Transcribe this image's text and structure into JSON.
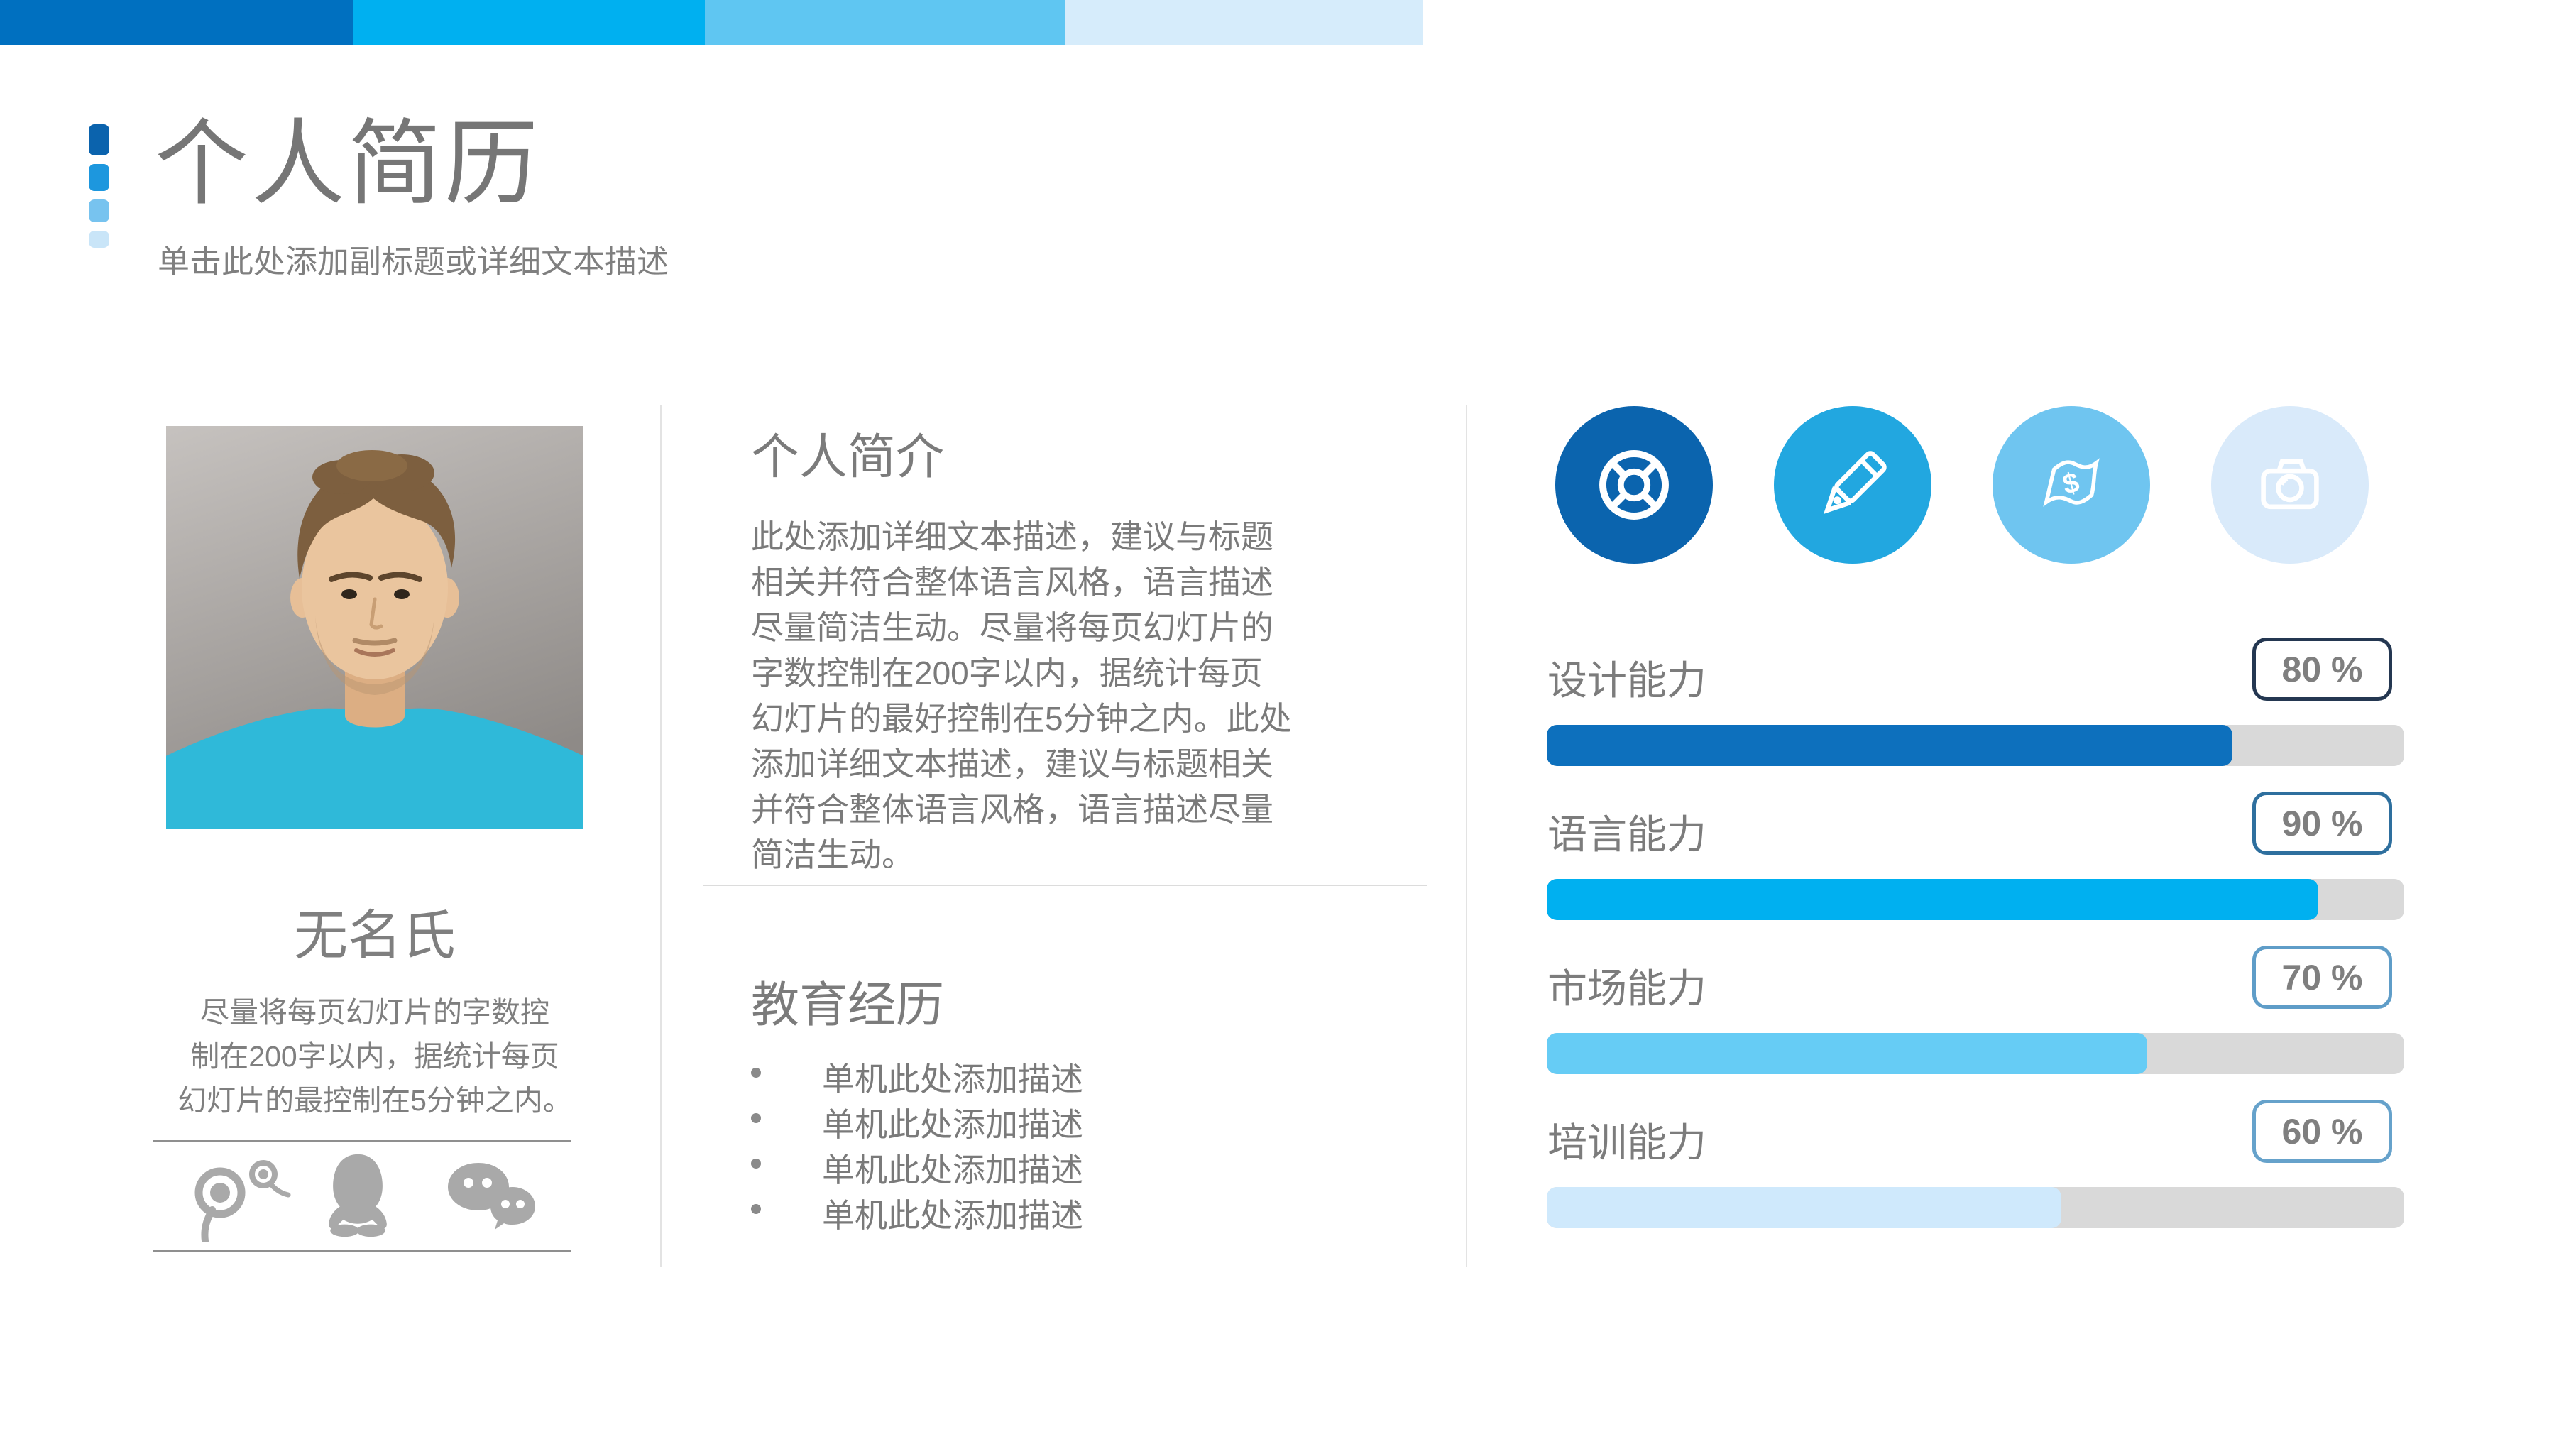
{
  "topbar": {
    "segments": [
      "#0070c0",
      "#00b0f0",
      "#5fc6f2",
      "#d6ecfb"
    ]
  },
  "decor": {
    "dash_colors": [
      "#0b63ad",
      "#1d97de",
      "#77c3ef",
      "#c9e5f8"
    ]
  },
  "header": {
    "title": "个人简历",
    "subtitle": "单击此处添加副标题或详细文本描述"
  },
  "profile": {
    "name": "无名氏",
    "summary": "尽量将每页幻灯片的字数控\n制在200字以内，据统计每页\n幻灯片的最控制在5分钟之内。",
    "social_icons": [
      "path",
      "qq",
      "wechat"
    ]
  },
  "intro": {
    "heading": "个人简介",
    "body": "此处添加详细文本描述，建议与标题\n相关并符合整体语言风格，语言描述\n尽量简洁生动。尽量将每页幻灯片的\n字数控制在200字以内，据统计每页\n幻灯片的最好控制在5分钟之内。此处\n添加详细文本描述，建议与标题相关\n并符合整体语言风格，语言描述尽量\n简洁生动。"
  },
  "education": {
    "heading": "教育经历",
    "bullets": [
      "单机此处添加描述",
      "单机此处添加描述",
      "单机此处添加描述",
      "单机此处添加描述"
    ]
  },
  "skills": {
    "icons": [
      {
        "name": "lifebuoy-icon",
        "bg": "#0b64ae"
      },
      {
        "name": "pencil-icon",
        "bg": "#22a7e0"
      },
      {
        "name": "money-icon",
        "bg": "#6fc5f0"
      },
      {
        "name": "camera-icon",
        "bg": "#d9eafa"
      }
    ],
    "track_color": "#d9d9d9",
    "items": [
      {
        "label": "设计能力",
        "percent_label": "80 %",
        "value": 80,
        "fill": "#0d70bd",
        "badge_border": "#243751"
      },
      {
        "label": "语言能力",
        "percent_label": "90 %",
        "value": 90,
        "fill": "#00b0f0",
        "badge_border": "#2e6f9e"
      },
      {
        "label": "市场能力",
        "percent_label": "70 %",
        "value": 70,
        "fill": "#66ccf5",
        "badge_border": "#5f9dc8"
      },
      {
        "label": "培训能力",
        "percent_label": "60 %",
        "value": 60,
        "fill": "#cfe9fc",
        "badge_border": "#66a2cb"
      }
    ]
  }
}
